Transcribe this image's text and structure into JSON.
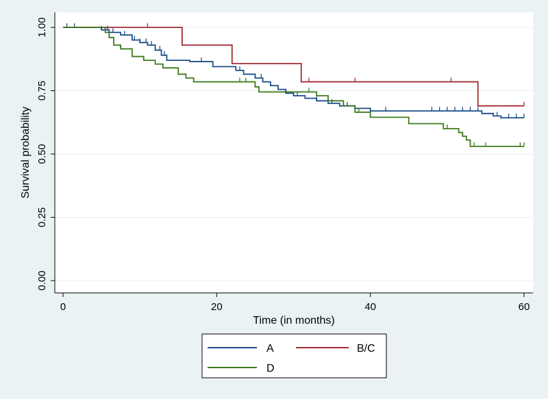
{
  "chart_data": {
    "type": "line",
    "subtype": "kaplan-meier step",
    "title": "",
    "xlabel": "Time (in months)",
    "ylabel": "Survival probability",
    "xlim": [
      0,
      60
    ],
    "ylim": [
      0,
      1
    ],
    "xticks": [
      "0",
      "20",
      "40",
      "60"
    ],
    "yticks": [
      "0.00",
      "0.25",
      "0.50",
      "0.75",
      "1.00"
    ],
    "grid": "horizontal",
    "legend_position": "bottom",
    "series": [
      {
        "name": "A",
        "color": "#1a4d8a",
        "steps": [
          [
            0,
            1.0
          ],
          [
            5,
            0.99
          ],
          [
            6,
            0.98
          ],
          [
            7.5,
            0.97
          ],
          [
            9,
            0.95
          ],
          [
            10,
            0.94
          ],
          [
            11,
            0.93
          ],
          [
            12,
            0.91
          ],
          [
            12.8,
            0.89
          ],
          [
            13.5,
            0.87
          ],
          [
            16.5,
            0.865
          ],
          [
            19.5,
            0.845
          ],
          [
            22.5,
            0.83
          ],
          [
            23.5,
            0.815
          ],
          [
            25,
            0.8
          ],
          [
            26,
            0.785
          ],
          [
            27,
            0.77
          ],
          [
            28,
            0.755
          ],
          [
            29,
            0.74
          ],
          [
            30,
            0.73
          ],
          [
            31.5,
            0.72
          ],
          [
            33,
            0.71
          ],
          [
            34.5,
            0.7
          ],
          [
            36,
            0.69
          ],
          [
            38,
            0.68
          ],
          [
            40,
            0.67
          ],
          [
            54.5,
            0.66
          ],
          [
            56,
            0.65
          ],
          [
            57,
            0.643
          ],
          [
            60,
            0.643
          ]
        ],
        "censor_times": [
          0.5,
          1.5,
          5,
          5.8,
          6.5,
          8,
          9.3,
          10,
          10.8,
          11.5,
          12,
          12.6,
          13.2,
          18,
          23,
          25.8,
          27,
          29,
          30.5,
          33,
          35,
          37,
          42,
          48,
          49,
          50,
          51,
          52,
          53,
          54,
          56.5,
          58,
          59,
          60
        ]
      },
      {
        "name": "B/C",
        "color": "#a02b32",
        "steps": [
          [
            0,
            1.0
          ],
          [
            15.5,
            0.93
          ],
          [
            22,
            0.857
          ],
          [
            31,
            0.785
          ],
          [
            54,
            0.69
          ],
          [
            60,
            0.69
          ]
        ],
        "censor_times": [
          11,
          32,
          38,
          50.5,
          60
        ]
      },
      {
        "name": "D",
        "color": "#3d7a1c",
        "steps": [
          [
            0,
            1.0
          ],
          [
            5.5,
            0.98
          ],
          [
            6,
            0.96
          ],
          [
            6.6,
            0.93
          ],
          [
            7.5,
            0.915
          ],
          [
            9,
            0.885
          ],
          [
            10.5,
            0.87
          ],
          [
            12,
            0.855
          ],
          [
            13,
            0.84
          ],
          [
            15,
            0.815
          ],
          [
            16,
            0.8
          ],
          [
            17,
            0.785
          ],
          [
            25,
            0.765
          ],
          [
            25.5,
            0.745
          ],
          [
            33,
            0.73
          ],
          [
            34.5,
            0.71
          ],
          [
            36.5,
            0.69
          ],
          [
            38,
            0.665
          ],
          [
            40,
            0.645
          ],
          [
            45,
            0.62
          ],
          [
            49.5,
            0.6
          ],
          [
            51.5,
            0.585
          ],
          [
            52,
            0.57
          ],
          [
            52.5,
            0.555
          ],
          [
            53,
            0.53
          ],
          [
            60,
            0.53
          ]
        ],
        "censor_times": [
          23,
          23.8,
          32,
          38.5,
          50,
          53,
          53.5,
          55,
          59.5,
          60
        ]
      }
    ]
  }
}
